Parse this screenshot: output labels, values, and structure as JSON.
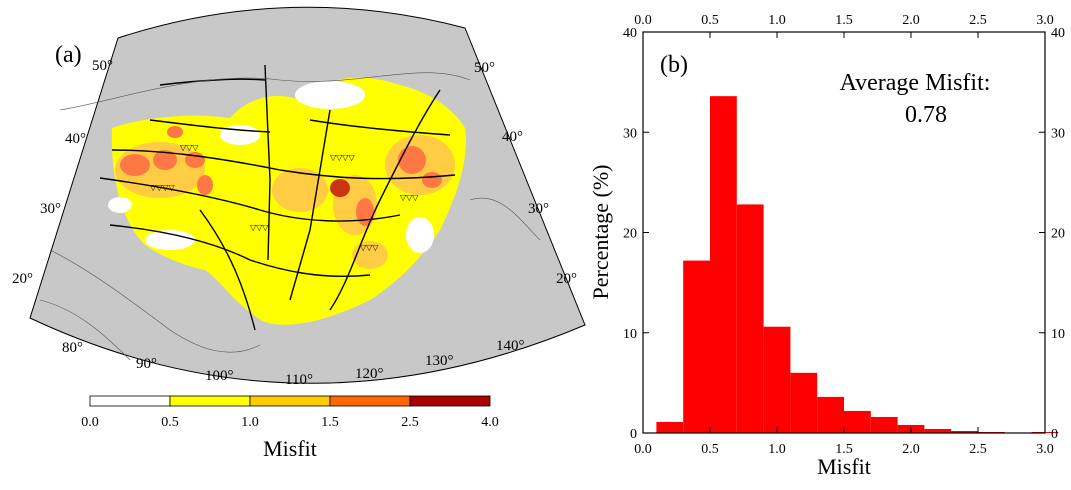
{
  "panel_a": {
    "letter": "(a)",
    "lat_labels_left": [
      "50°",
      "40°",
      "30°",
      "20°"
    ],
    "lat_labels_right": [
      "50°",
      "40°",
      "30°",
      "20°"
    ],
    "lon_labels_bottom": [
      "80°",
      "90°",
      "100°",
      "110°",
      "120°",
      "130°",
      "140°"
    ],
    "colorbar": {
      "title": "Misfit",
      "ticks": [
        "0.0",
        "0.5",
        "1.0",
        "1.5",
        "2.5",
        "4.0"
      ],
      "colors": [
        "#ffffff",
        "#ffff00",
        "#ffcc00",
        "#ff6600",
        "#aa0000"
      ]
    },
    "map_colors": {
      "background": "#c8c8c8",
      "misfit_low": "#ffff00",
      "misfit_mid": "#ffcc44",
      "misfit_high": "#ff7744",
      "misfit_peak": "#cc3311",
      "no_data": "#ffffff"
    }
  },
  "panel_b": {
    "letter": "(b)",
    "annotation_label": "Average Misfit:",
    "annotation_value": "0.78",
    "x_ticks": [
      "0.0",
      "0.5",
      "1.0",
      "1.5",
      "2.0",
      "2.5",
      "3.0"
    ],
    "y_ticks": [
      "0",
      "10",
      "20",
      "30",
      "40"
    ],
    "bar_color": "#ff0000"
  },
  "chart_data": {
    "type": "bar",
    "title": "",
    "xlabel": "Misfit",
    "ylabel": "Percentage (%)",
    "xlim": [
      0.0,
      3.0
    ],
    "ylim": [
      0,
      40
    ],
    "bin_width": 0.2,
    "bin_starts": [
      0.1,
      0.3,
      0.5,
      0.7,
      0.9,
      1.1,
      1.3,
      1.5,
      1.7,
      1.9,
      2.1,
      2.3,
      2.5,
      2.7,
      2.9
    ],
    "values": [
      1.1,
      17.2,
      33.6,
      22.8,
      10.6,
      6.0,
      3.6,
      2.2,
      1.6,
      0.8,
      0.4,
      0.2,
      0.1,
      0.0,
      0.1
    ]
  }
}
